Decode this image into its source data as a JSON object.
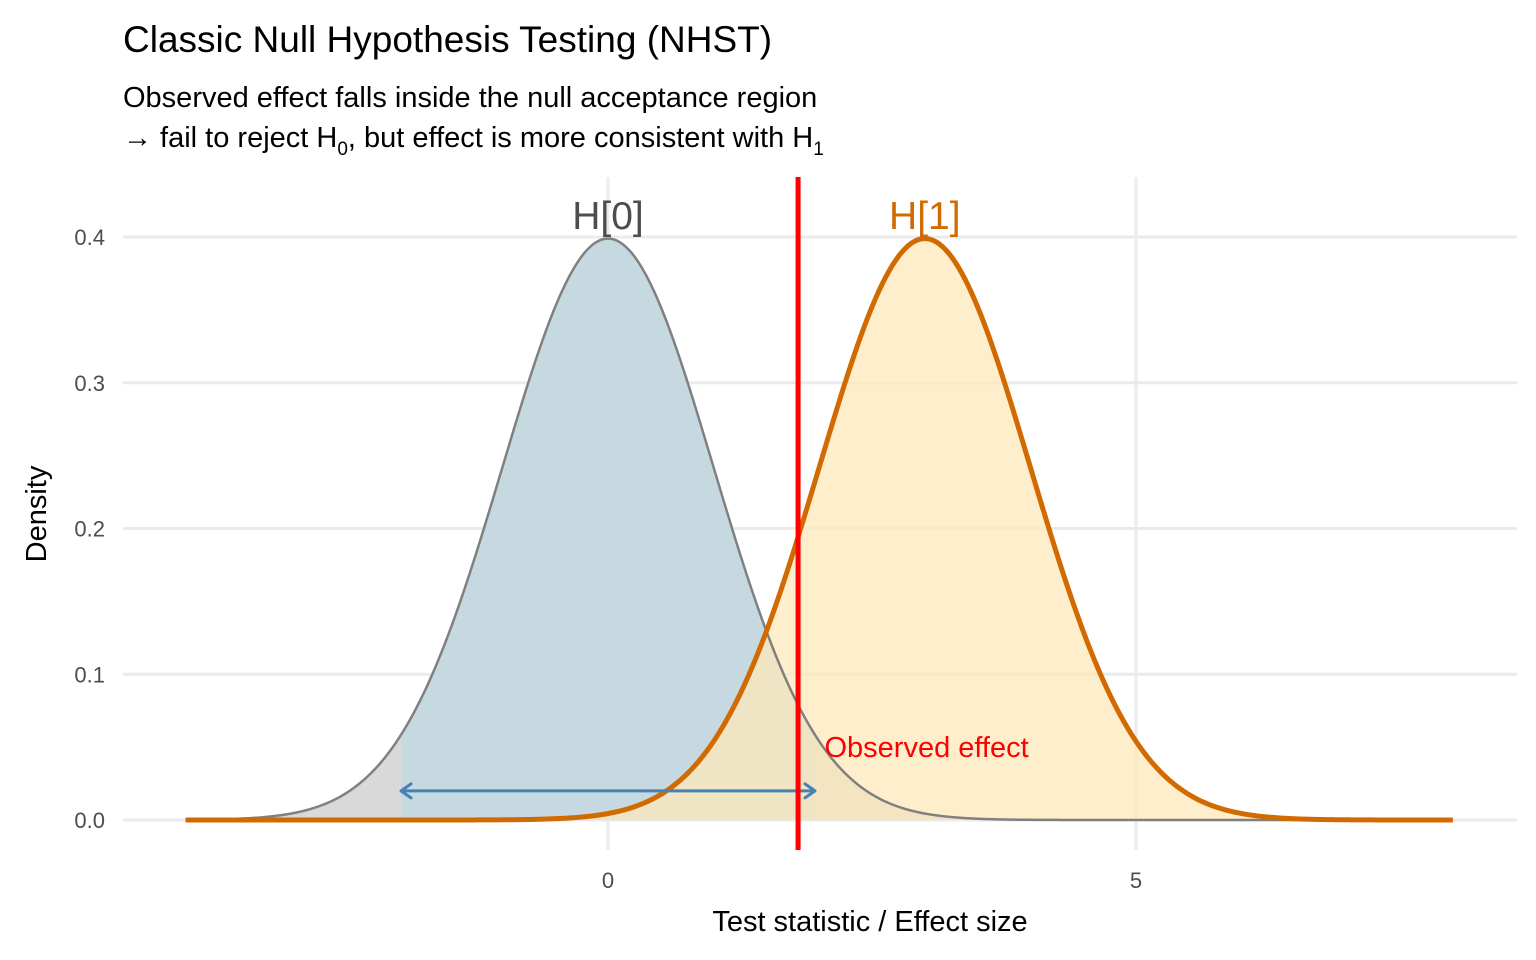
{
  "chart_data": {
    "type": "area",
    "title": "Classic Null Hypothesis Testing (NHST)",
    "subtitle": {
      "line1": "Observed effect falls inside the null acceptance region",
      "line2_prefix": "→ fail to reject H",
      "line2_sub0": "0",
      "line2_middle": ", but effect is more consistent with H",
      "line2_sub1": "1"
    },
    "xlabel": "Test statistic / Effect size",
    "ylabel": "Density",
    "xlim": [
      -4,
      8
    ],
    "ylim": [
      0,
      0.4
    ],
    "x_ticks": [
      0,
      5
    ],
    "x_tick_labels": [
      "0",
      "5"
    ],
    "y_ticks": [
      0.0,
      0.1,
      0.2,
      0.3,
      0.4
    ],
    "y_tick_labels": [
      "0.0",
      "0.1",
      "0.2",
      "0.3",
      "0.4"
    ],
    "grid": true,
    "series": [
      {
        "name": "H[0]",
        "distribution": "normal",
        "mean": 0,
        "sd": 1,
        "x_range": [
          -4,
          8
        ],
        "line_color": "#808080",
        "tail_fill_color": "#d9d9d9",
        "acceptance_fill_color": "#c7d9e0",
        "acceptance_region": [
          -1.96,
          1.96
        ]
      },
      {
        "name": "H[1]",
        "distribution": "normal",
        "mean": 3,
        "sd": 1,
        "x_range": [
          -4,
          8
        ],
        "line_color": "#d16a00",
        "fill_color": "#ffe8b8"
      }
    ],
    "curve_labels": [
      {
        "text": "H[0]",
        "x": 0,
        "y": 0.4,
        "color": "#4d4d4d"
      },
      {
        "text": "H[1]",
        "x": 3,
        "y": 0.4,
        "color": "#d16a00"
      }
    ],
    "observed_effect": {
      "x": 1.8,
      "color": "#ff0000",
      "label": "Observed effect",
      "label_x": 2.05,
      "label_y": 0.05
    },
    "acceptance_arrow": {
      "from": -1.96,
      "to": 1.96,
      "y": 0.02,
      "color": "#4682b4"
    },
    "grid_color": "#ebebeb"
  }
}
